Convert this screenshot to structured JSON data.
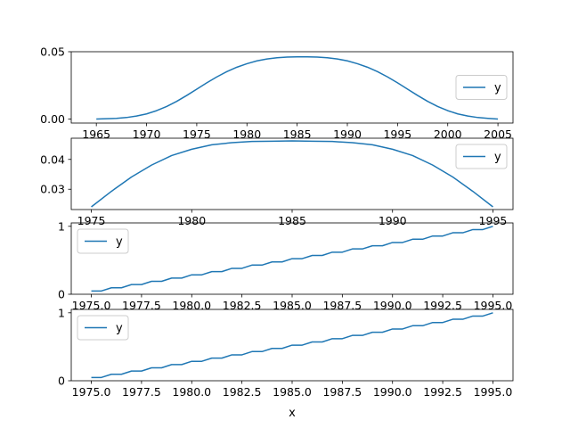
{
  "chart_data": [
    {
      "type": "line",
      "xlabel": "",
      "xlim": [
        1962.5,
        2006.5
      ],
      "ylim": [
        -0.003,
        0.05
      ],
      "xticks": [
        1965,
        1970,
        1975,
        1980,
        1985,
        1990,
        1995,
        2000,
        2005
      ],
      "xtick_labels": [
        "1965",
        "1970",
        "1975",
        "1980",
        "1985",
        "1990",
        "1995",
        "2000",
        "2005"
      ],
      "yticks": [
        0.0,
        0.05
      ],
      "ytick_labels": [
        "0.00",
        "0.05"
      ],
      "legend_position": "right",
      "series": [
        {
          "name": "y",
          "color": "#1f77b4",
          "x": [
            1965,
            1966,
            1967,
            1968,
            1969,
            1970,
            1971,
            1972,
            1973,
            1974,
            1975,
            1976,
            1977,
            1978,
            1979,
            1980,
            1981,
            1982,
            1983,
            1984,
            1985,
            1986,
            1987,
            1988,
            1989,
            1990,
            1991,
            1992,
            1993,
            1994,
            1995,
            1996,
            1997,
            1998,
            1999,
            2000,
            2001,
            2002,
            2003,
            2004,
            2005
          ],
          "values": [
            0.0,
            0.0002,
            0.0005,
            0.0011,
            0.0022,
            0.0038,
            0.0062,
            0.0093,
            0.0131,
            0.0175,
            0.0222,
            0.0269,
            0.0313,
            0.0352,
            0.0385,
            0.0411,
            0.0432,
            0.0446,
            0.0455,
            0.046,
            0.0462,
            0.0462,
            0.046,
            0.0455,
            0.0446,
            0.0432,
            0.0411,
            0.0385,
            0.0352,
            0.0313,
            0.0269,
            0.0222,
            0.0175,
            0.0131,
            0.0093,
            0.0062,
            0.0038,
            0.0022,
            0.0011,
            0.0005,
            0.0
          ]
        }
      ]
    },
    {
      "type": "line",
      "xlabel": "",
      "xlim": [
        1974,
        1996
      ],
      "ylim": [
        0.0232,
        0.0471
      ],
      "xticks": [
        1975,
        1980,
        1985,
        1990,
        1995
      ],
      "xtick_labels": [
        "1975",
        "1980",
        "1985",
        "1990",
        "1995"
      ],
      "yticks": [
        0.03,
        0.04
      ],
      "ytick_labels": [
        "0.03",
        "0.04"
      ],
      "legend_position": "top-right",
      "series": [
        {
          "name": "y",
          "color": "#1f77b4",
          "x": [
            1975,
            1976,
            1977,
            1978,
            1979,
            1980,
            1981,
            1982,
            1983,
            1984,
            1985,
            1986,
            1987,
            1988,
            1989,
            1990,
            1991,
            1992,
            1993,
            1994,
            1995
          ],
          "values": [
            0.0241,
            0.0293,
            0.0341,
            0.0381,
            0.0413,
            0.0434,
            0.0449,
            0.0456,
            0.046,
            0.0461,
            0.0462,
            0.0461,
            0.046,
            0.0456,
            0.0449,
            0.0434,
            0.0413,
            0.0381,
            0.0341,
            0.0293,
            0.0241
          ]
        }
      ]
    },
    {
      "type": "line",
      "xlabel": "",
      "xlim": [
        1974,
        1996
      ],
      "ylim": [
        0.0,
        1.05
      ],
      "xticks": [
        1975.0,
        1977.5,
        1980.0,
        1982.5,
        1985.0,
        1987.5,
        1990.0,
        1992.5,
        1995.0
      ],
      "xtick_labels": [
        "1975.0",
        "1977.5",
        "1980.0",
        "1982.5",
        "1985.0",
        "1987.5",
        "1990.0",
        "1992.5",
        "1995.0"
      ],
      "yticks": [
        0,
        1
      ],
      "ytick_labels": [
        "0",
        "1"
      ],
      "legend_position": "top-left",
      "series": [
        {
          "name": "y",
          "color": "#1f77b4",
          "x": [
            1975,
            1975.5,
            1976,
            1976.5,
            1977,
            1977.5,
            1978,
            1978.5,
            1979,
            1979.5,
            1980,
            1980.5,
            1981,
            1981.5,
            1982,
            1982.5,
            1983,
            1983.5,
            1984,
            1984.5,
            1985,
            1985.5,
            1986,
            1986.5,
            1987,
            1987.5,
            1988,
            1988.5,
            1989,
            1989.5,
            1990,
            1990.5,
            1991,
            1991.5,
            1992,
            1992.5,
            1993,
            1993.5,
            1994,
            1994.5,
            1995
          ],
          "values": [
            0.048,
            0.048,
            0.095,
            0.095,
            0.143,
            0.143,
            0.19,
            0.19,
            0.238,
            0.238,
            0.286,
            0.286,
            0.333,
            0.333,
            0.381,
            0.381,
            0.429,
            0.429,
            0.476,
            0.476,
            0.524,
            0.524,
            0.571,
            0.571,
            0.619,
            0.619,
            0.667,
            0.667,
            0.714,
            0.714,
            0.762,
            0.762,
            0.81,
            0.81,
            0.857,
            0.857,
            0.905,
            0.905,
            0.952,
            0.952,
            1.0
          ]
        }
      ]
    },
    {
      "type": "line",
      "xlabel": "x",
      "xlim": [
        1974,
        1996
      ],
      "ylim": [
        0.0,
        1.05
      ],
      "xticks": [
        1975.0,
        1977.5,
        1980.0,
        1982.5,
        1985.0,
        1987.5,
        1990.0,
        1992.5,
        1995.0
      ],
      "xtick_labels": [
        "1975.0",
        "1977.5",
        "1980.0",
        "1982.5",
        "1985.0",
        "1987.5",
        "1990.0",
        "1992.5",
        "1995.0"
      ],
      "yticks": [
        0,
        1
      ],
      "ytick_labels": [
        "0",
        "1"
      ],
      "legend_position": "top-left",
      "series": [
        {
          "name": "y",
          "color": "#1f77b4",
          "x": [
            1975,
            1975.5,
            1976,
            1976.5,
            1977,
            1977.5,
            1978,
            1978.5,
            1979,
            1979.5,
            1980,
            1980.5,
            1981,
            1981.5,
            1982,
            1982.5,
            1983,
            1983.5,
            1984,
            1984.5,
            1985,
            1985.5,
            1986,
            1986.5,
            1987,
            1987.5,
            1988,
            1988.5,
            1989,
            1989.5,
            1990,
            1990.5,
            1991,
            1991.5,
            1992,
            1992.5,
            1993,
            1993.5,
            1994,
            1994.5,
            1995
          ],
          "values": [
            0.048,
            0.048,
            0.095,
            0.095,
            0.143,
            0.143,
            0.19,
            0.19,
            0.238,
            0.238,
            0.286,
            0.286,
            0.333,
            0.333,
            0.381,
            0.381,
            0.429,
            0.429,
            0.476,
            0.476,
            0.524,
            0.524,
            0.571,
            0.571,
            0.619,
            0.619,
            0.667,
            0.667,
            0.714,
            0.714,
            0.762,
            0.762,
            0.81,
            0.81,
            0.857,
            0.857,
            0.905,
            0.905,
            0.952,
            0.952,
            1.0
          ]
        }
      ]
    }
  ]
}
